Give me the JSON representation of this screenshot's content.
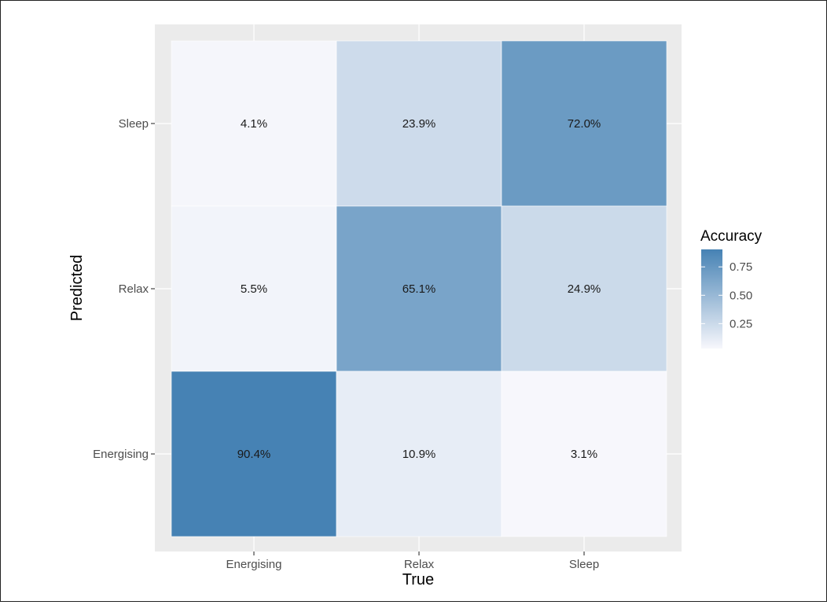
{
  "chart_data": {
    "type": "heatmap",
    "title": "",
    "xlabel": "True",
    "ylabel": "Predicted",
    "x_categories": [
      "Energising",
      "Relax",
      "Sleep"
    ],
    "y_categories": [
      "Energising",
      "Relax",
      "Sleep"
    ],
    "cells": [
      {
        "x": "Energising",
        "y": "Sleep",
        "value": 0.041,
        "label": "4.1%"
      },
      {
        "x": "Relax",
        "y": "Sleep",
        "value": 0.239,
        "label": "23.9%"
      },
      {
        "x": "Sleep",
        "y": "Sleep",
        "value": 0.72,
        "label": "72.0%"
      },
      {
        "x": "Energising",
        "y": "Relax",
        "value": 0.055,
        "label": "5.5%"
      },
      {
        "x": "Relax",
        "y": "Relax",
        "value": 0.651,
        "label": "65.1%"
      },
      {
        "x": "Sleep",
        "y": "Relax",
        "value": 0.249,
        "label": "24.9%"
      },
      {
        "x": "Energising",
        "y": "Energising",
        "value": 0.904,
        "label": "90.4%"
      },
      {
        "x": "Relax",
        "y": "Energising",
        "value": 0.109,
        "label": "10.9%"
      },
      {
        "x": "Sleep",
        "y": "Energising",
        "value": 0.031,
        "label": "3.1%"
      }
    ],
    "legend": {
      "title": "Accuracy",
      "position": "right",
      "ticks": [
        {
          "value": 0.75,
          "label": "0.75"
        },
        {
          "value": 0.5,
          "label": "0.50"
        },
        {
          "value": 0.25,
          "label": "0.25"
        }
      ],
      "range": [
        0.031,
        0.904
      ],
      "low_color": "#f7f7fc",
      "high_color": "#4682b4"
    },
    "panel_background": "#ebebeb",
    "grid": true
  }
}
